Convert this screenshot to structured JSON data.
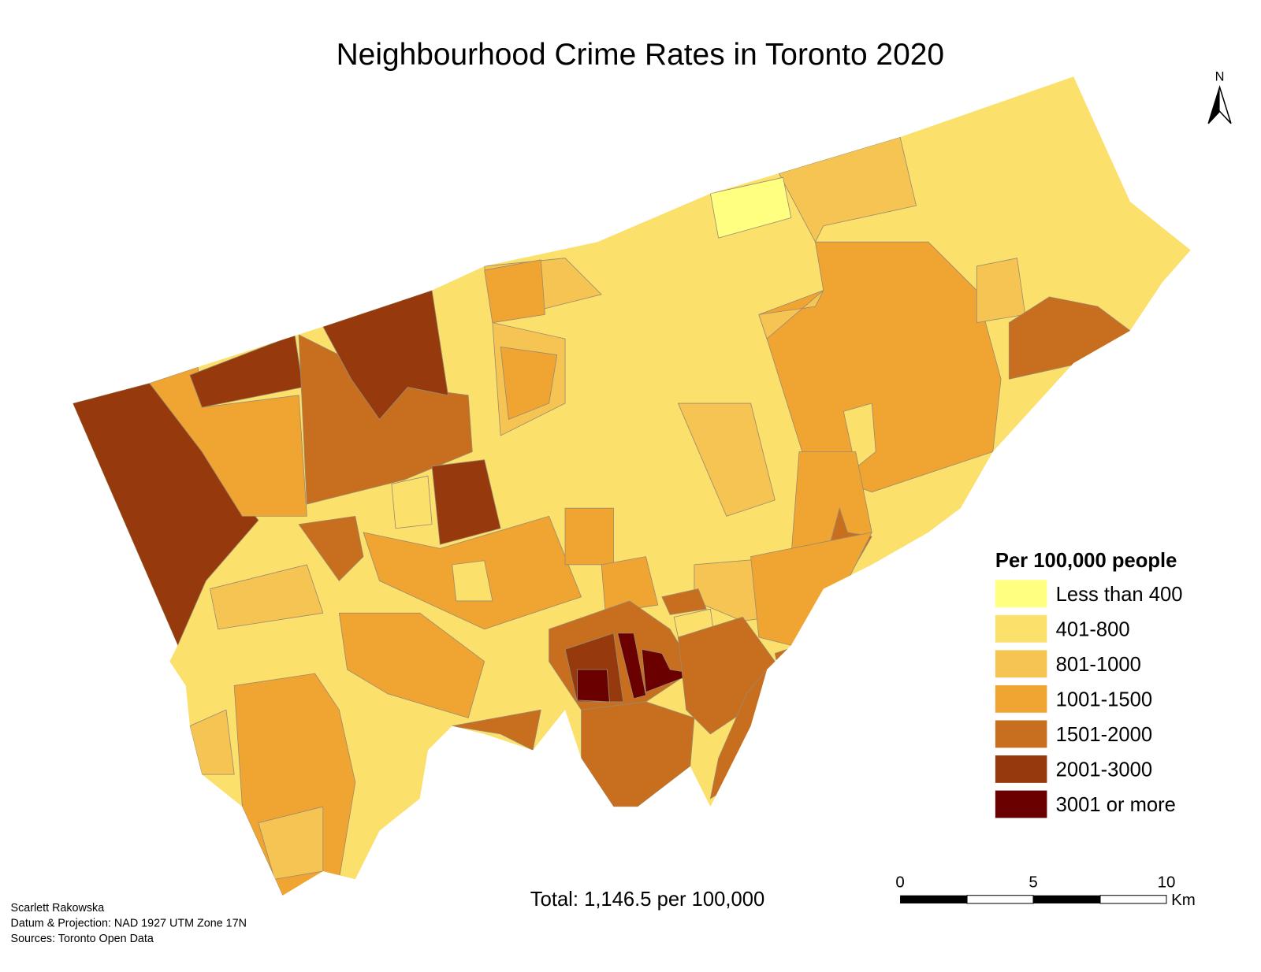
{
  "title": "Neighbourhood Crime Rates in Toronto 2020",
  "north_label": "N",
  "legend": {
    "title": "Per 100,000 people",
    "items": [
      {
        "label": "Less than 400",
        "color": "#ffff80"
      },
      {
        "label": "401-800",
        "color": "#fbe06c"
      },
      {
        "label": "801-1000",
        "color": "#f5c452"
      },
      {
        "label": "1001-1500",
        "color": "#f0a431"
      },
      {
        "label": "1501-2000",
        "color": "#c86e1f"
      },
      {
        "label": "2001-3000",
        "color": "#963a0d"
      },
      {
        "label": "3001 or more",
        "color": "#6b0000"
      }
    ]
  },
  "total": "Total: 1,146.5 per 100,000",
  "scale_bar": {
    "labels": [
      "0",
      "5",
      "10"
    ],
    "unit": "Km"
  },
  "credits": [
    "Scarlett Rakowska",
    "Datum & Projection: NAD 1927 UTM Zone 17N",
    "Sources: Toronto Open Data"
  ]
}
